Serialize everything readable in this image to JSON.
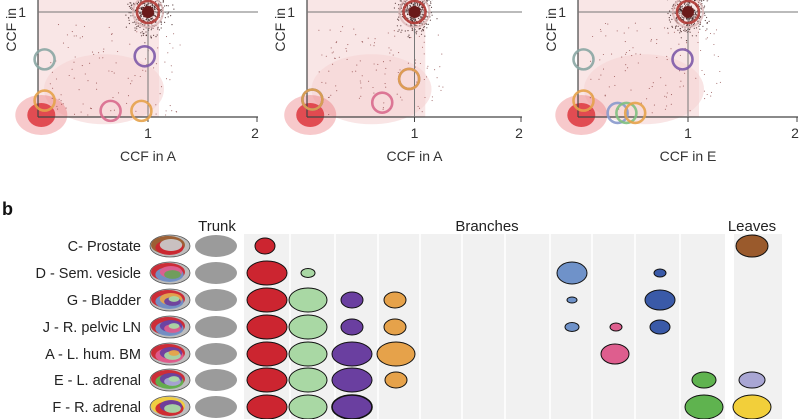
{
  "top_panels": [
    {
      "x_axis_label": "CCF in A",
      "y_axis_label": "CCF in",
      "tick_y_1": "1",
      "tick_x_1": "1",
      "tick_x_2": "2",
      "clusters": [
        {
          "ccf_x": 1.0,
          "ccf_y": 1.0,
          "color": "#b13a35"
        },
        {
          "ccf_x": 0.97,
          "ccf_y": 0.57,
          "color": "#7d5aa8"
        },
        {
          "ccf_x": 0.06,
          "ccf_y": 0.54,
          "color": "#8aa6a3"
        },
        {
          "ccf_x": 0.06,
          "ccf_y": 0.14,
          "color": "#e6a24a"
        },
        {
          "ccf_x": 0.66,
          "ccf_y": 0.04,
          "color": "#d86a8d"
        },
        {
          "ccf_x": 0.94,
          "ccf_y": 0.04,
          "color": "#e6a24a"
        }
      ]
    },
    {
      "x_axis_label": "CCF in A",
      "y_axis_label": "CCF in",
      "tick_y_1": "1",
      "tick_x_1": "1",
      "tick_x_2": "2",
      "clusters": [
        {
          "ccf_x": 1.0,
          "ccf_y": 1.0,
          "color": "#b13a35"
        },
        {
          "ccf_x": 0.95,
          "ccf_y": 0.35,
          "color": "#7d5aa8"
        },
        {
          "ccf_x": 0.95,
          "ccf_y": 0.35,
          "color": "#e6a24a"
        },
        {
          "ccf_x": 0.05,
          "ccf_y": 0.15,
          "color": "#4466aa"
        },
        {
          "ccf_x": 0.05,
          "ccf_y": 0.15,
          "color": "#e6a24a"
        },
        {
          "ccf_x": 0.7,
          "ccf_y": 0.12,
          "color": "#d86a8d"
        }
      ]
    },
    {
      "x_axis_label": "CCF in E",
      "y_axis_label": "CCF in",
      "tick_y_1": "1",
      "tick_x_1": "1",
      "tick_x_2": "2",
      "clusters": [
        {
          "ccf_x": 1.0,
          "ccf_y": 1.0,
          "color": "#b13a35"
        },
        {
          "ccf_x": 0.95,
          "ccf_y": 0.54,
          "color": "#7d5aa8"
        },
        {
          "ccf_x": 0.05,
          "ccf_y": 0.54,
          "color": "#8aa6a3"
        },
        {
          "ccf_x": 0.05,
          "ccf_y": 0.14,
          "color": "#e6a24a"
        },
        {
          "ccf_x": 0.36,
          "ccf_y": 0.02,
          "color": "#8899cc"
        },
        {
          "ccf_x": 0.44,
          "ccf_y": 0.02,
          "color": "#7fbf7f"
        },
        {
          "ccf_x": 0.52,
          "ccf_y": 0.02,
          "color": "#e6a24a"
        }
      ]
    }
  ],
  "panel_b": {
    "letter": "b",
    "headers": {
      "trunk": "Trunk",
      "branches": "Branches",
      "leaves": "Leaves"
    },
    "rows": [
      {
        "label": "C- Prostate"
      },
      {
        "label": "D - Sem. vesicle"
      },
      {
        "label": "G - Bladder"
      },
      {
        "label": "J - R. pelvic LN"
      },
      {
        "label": "A - L. hum. BM"
      },
      {
        "label": "E - L. adrenal"
      },
      {
        "label": "F - R. adrenal"
      }
    ]
  },
  "colors": {
    "trunk_grey": "#9b9b9b",
    "red": "#cc2530",
    "light_green": "#a9d8a4",
    "purple": "#6a3fa0",
    "orange": "#e6a24a",
    "blue": "#6f92c9",
    "dark_blue": "#3a5aa8",
    "pink": "#de5e8e",
    "green": "#5fb34f",
    "lavender": "#a9a6d4",
    "yellow": "#f2cf3a",
    "brown": "#9a5a2c",
    "panel_bg": "#f1f1f1"
  }
}
